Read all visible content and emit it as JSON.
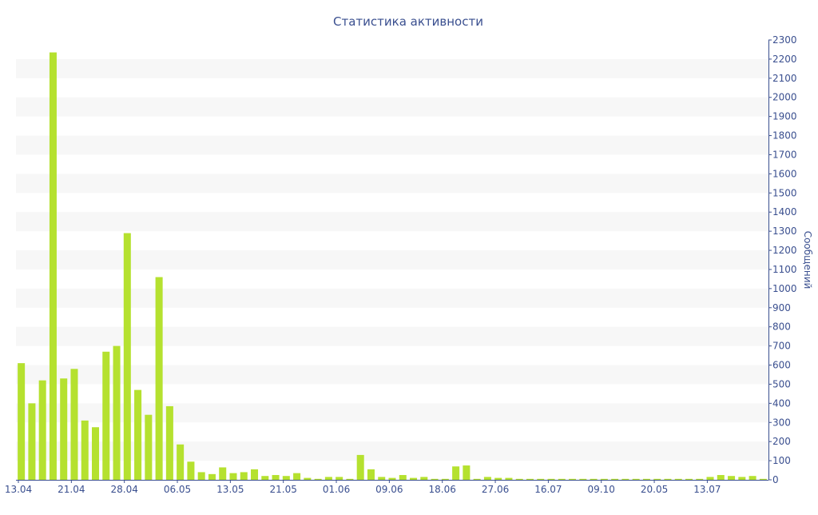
{
  "chart_data": {
    "type": "bar",
    "title": "Статистика активности",
    "ylabel": "Сообщений",
    "xlabel": "",
    "y_axis_position": "right",
    "ylim": [
      0,
      2300
    ],
    "y_ticks": [
      0,
      100,
      200,
      300,
      400,
      500,
      600,
      700,
      800,
      900,
      1000,
      1100,
      1200,
      1300,
      1400,
      1500,
      1600,
      1700,
      1800,
      1900,
      2000,
      2100,
      2200,
      2300
    ],
    "grid": "alternating horizontal bands",
    "legend": "none",
    "x_tick_labels": [
      "13.04",
      "21.04",
      "28.04",
      "06.05",
      "13.05",
      "21.05",
      "01.06",
      "09.06",
      "18.06",
      "27.06",
      "16.07",
      "09.10",
      "20.05",
      "13.07"
    ],
    "x_tick_every": 5,
    "series": [
      {
        "values": [
          610,
          400,
          520,
          2235,
          530,
          580,
          310,
          275,
          670,
          700,
          1290,
          470,
          340,
          1060,
          385,
          185,
          95,
          40,
          30,
          65,
          35,
          40,
          55,
          20,
          25,
          20,
          35,
          10,
          5,
          15,
          15,
          5,
          130,
          55,
          15,
          10,
          25,
          10,
          15,
          5,
          5,
          70,
          75,
          5,
          15,
          10,
          10,
          5,
          5,
          5,
          5,
          5,
          5,
          5,
          5,
          5,
          5,
          5,
          5,
          5,
          5,
          5,
          5,
          5,
          5,
          15,
          25,
          20,
          15,
          20,
          5
        ]
      }
    ],
    "colors": {
      "bar": "#b5e12f",
      "text": "#3a4f8f",
      "axis": "#3a4f8f",
      "band": "#f7f7f7"
    }
  }
}
